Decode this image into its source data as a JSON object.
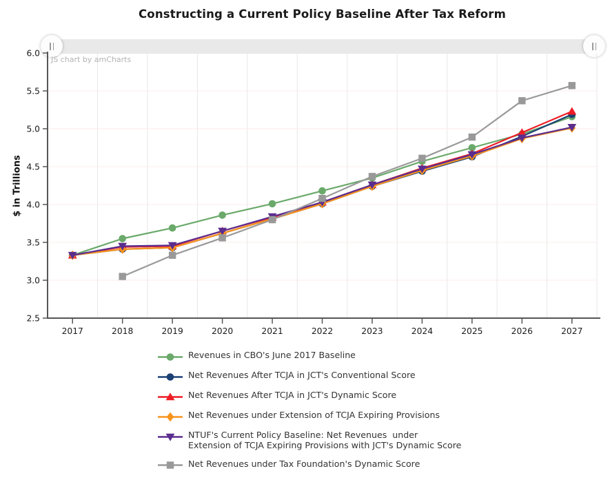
{
  "title": "Constructing a Current Policy Baseline After Tax Reform",
  "watermark": "JS chart by amCharts",
  "chart_data": {
    "type": "line",
    "title": "Constructing a Current Policy Baseline After Tax Reform",
    "xlabel": "",
    "ylabel": "$ in Trillions",
    "x": [
      "2017",
      "2018",
      "2019",
      "2020",
      "2021",
      "2022",
      "2023",
      "2024",
      "2025",
      "2026",
      "2027"
    ],
    "ylim": [
      2.5,
      6.0
    ],
    "ytick_labels": [
      "2.5",
      "3.0",
      "3.5",
      "4.0",
      "4.5",
      "5.0",
      "5.5",
      "6.0"
    ],
    "grid": true,
    "legend_position": "bottom",
    "scrollbar": true,
    "series": [
      {
        "key": "cbo-baseline",
        "name": "Revenues in CBO's June 2017 Baseline",
        "label_lines": [
          "Revenues in CBO's June 2017 Baseline"
        ],
        "color": "#6aa96a",
        "marker": "circle",
        "values": [
          3.33,
          3.55,
          3.69,
          3.86,
          4.01,
          4.18,
          4.35,
          4.57,
          4.75,
          4.93,
          5.16
        ]
      },
      {
        "key": "jct-conventional",
        "name": "Net Revenues After TCJA in JCT's Conventional Score",
        "label_lines": [
          "Net Revenues After TCJA in JCT's Conventional Score"
        ],
        "color": "#1b4074",
        "marker": "circle",
        "values": [
          3.33,
          3.41,
          3.43,
          3.62,
          3.81,
          4.01,
          4.24,
          4.44,
          4.63,
          4.9,
          5.19
        ]
      },
      {
        "key": "jct-dynamic",
        "name": "Net Revenues After TCJA in JCT's Dynamic Score",
        "label_lines": [
          "Net Revenues After TCJA in JCT's Dynamic Score"
        ],
        "color": "#ee1c25",
        "marker": "triangle-up",
        "values": [
          3.33,
          3.44,
          3.45,
          3.65,
          3.83,
          4.03,
          4.26,
          4.48,
          4.67,
          4.95,
          5.23
        ]
      },
      {
        "key": "tcja-extension",
        "name": "Net Revenues under Extension of TCJA Expiring Provisions",
        "label_lines": [
          "Net Revenues under Extension of TCJA Expiring Provisions"
        ],
        "color": "#f7941e",
        "marker": "diamond",
        "values": [
          3.33,
          3.41,
          3.43,
          3.62,
          3.81,
          4.01,
          4.24,
          4.45,
          4.64,
          4.87,
          5.01
        ]
      },
      {
        "key": "ntuf-current-policy",
        "name": "NTUF's Current Policy Baseline: Net Revenues  under Extension of TCJA Expiring Provisions with JCT's Dynamic Score",
        "label_lines": [
          "NTUF's Current Policy Baseline: Net Revenues  under",
          "Extension of TCJA Expiring Provisions with JCT's Dynamic Score"
        ],
        "color": "#5b2d8e",
        "marker": "triangle-down",
        "values": [
          3.33,
          3.45,
          3.46,
          3.65,
          3.84,
          4.03,
          4.26,
          4.47,
          4.66,
          4.88,
          5.02
        ]
      },
      {
        "key": "tax-foundation",
        "name": "Net Revenues under Tax Foundation's Dynamic Score",
        "label_lines": [
          "Net Revenues under Tax Foundation's Dynamic Score"
        ],
        "color": "#999999",
        "marker": "square",
        "values": [
          null,
          3.05,
          3.33,
          3.56,
          3.8,
          4.08,
          4.37,
          4.61,
          4.89,
          5.37,
          5.57
        ]
      }
    ]
  }
}
